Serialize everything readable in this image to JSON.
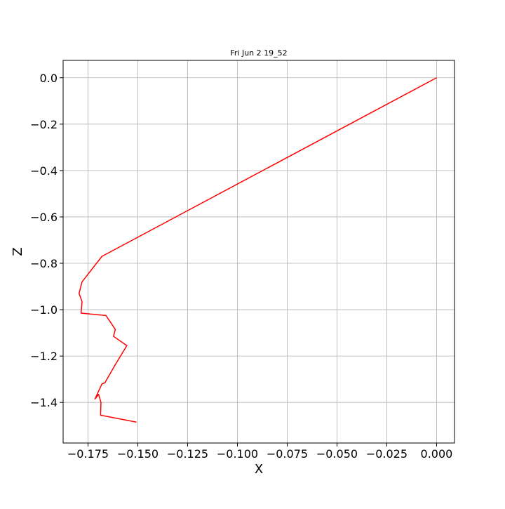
{
  "chart_data": {
    "type": "line",
    "title": "Fri Jun  2 19_52",
    "xlabel": "X",
    "ylabel": "Z",
    "xlim": [
      -0.1875,
      0.009
    ],
    "ylim": [
      -1.575,
      0.075
    ],
    "grid": true,
    "xticks": [
      -0.175,
      -0.15,
      -0.125,
      -0.1,
      -0.075,
      -0.05,
      -0.025,
      0.0
    ],
    "xtick_labels": [
      "−0.175",
      "−0.150",
      "−0.125",
      "−0.100",
      "−0.075",
      "−0.050",
      "−0.025",
      "0.000"
    ],
    "yticks": [
      0.0,
      -0.2,
      -0.4,
      -0.6,
      -0.8,
      -1.0,
      -1.2,
      -1.4
    ],
    "ytick_labels": [
      "0.0",
      "−0.2",
      "−0.4",
      "−0.6",
      "−0.8",
      "−1.0",
      "−1.2",
      "−1.4"
    ],
    "series": [
      {
        "color": "#ff0000",
        "x": [
          0.0,
          -0.168,
          -0.178,
          -0.1795,
          -0.178,
          -0.1785,
          -0.166,
          -0.1613,
          -0.1622,
          -0.1555,
          -0.1615,
          -0.1665,
          -0.168,
          -0.1715,
          -0.1697,
          -0.1685,
          -0.1687,
          -0.1507
        ],
        "z": [
          0.0,
          -0.77,
          -0.88,
          -0.93,
          -0.965,
          -1.015,
          -1.025,
          -1.085,
          -1.115,
          -1.155,
          -1.24,
          -1.315,
          -1.32,
          -1.385,
          -1.365,
          -1.4,
          -1.455,
          -1.485
        ]
      }
    ]
  }
}
